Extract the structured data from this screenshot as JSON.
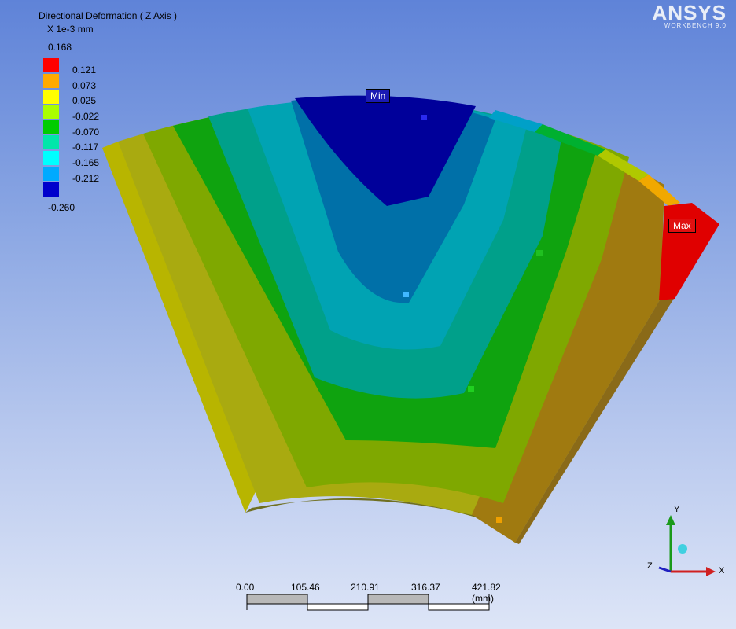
{
  "legend": {
    "title": "Directional Deformation ( Z Axis )",
    "units": "X 1e-3 mm",
    "max_label": "0.168",
    "min_label": "-0.260",
    "levels": [
      {
        "label": "0.121",
        "color": "#ff0000"
      },
      {
        "label": "0.073",
        "color": "#ffaa00"
      },
      {
        "label": "0.025",
        "color": "#ffff00"
      },
      {
        "label": "-0.022",
        "color": "#aaff00"
      },
      {
        "label": "-0.070",
        "color": "#00cc00"
      },
      {
        "label": "-0.117",
        "color": "#00e6aa"
      },
      {
        "label": "-0.165",
        "color": "#00ffff"
      },
      {
        "label": "-0.212",
        "color": "#00aaff"
      },
      {
        "label": "",
        "color": "#0000cc"
      }
    ]
  },
  "logo": {
    "brand": "ANSYS",
    "sub": "WORKBENCH 9.0"
  },
  "probes": {
    "min_label": "Min",
    "max_label": "Max"
  },
  "triad": {
    "x": "X",
    "y": "Y",
    "z": "Z"
  },
  "scale_bar": {
    "ticks": [
      "0.00",
      "105.46",
      "210.91",
      "316.37",
      "421.82 (mm)"
    ]
  }
}
